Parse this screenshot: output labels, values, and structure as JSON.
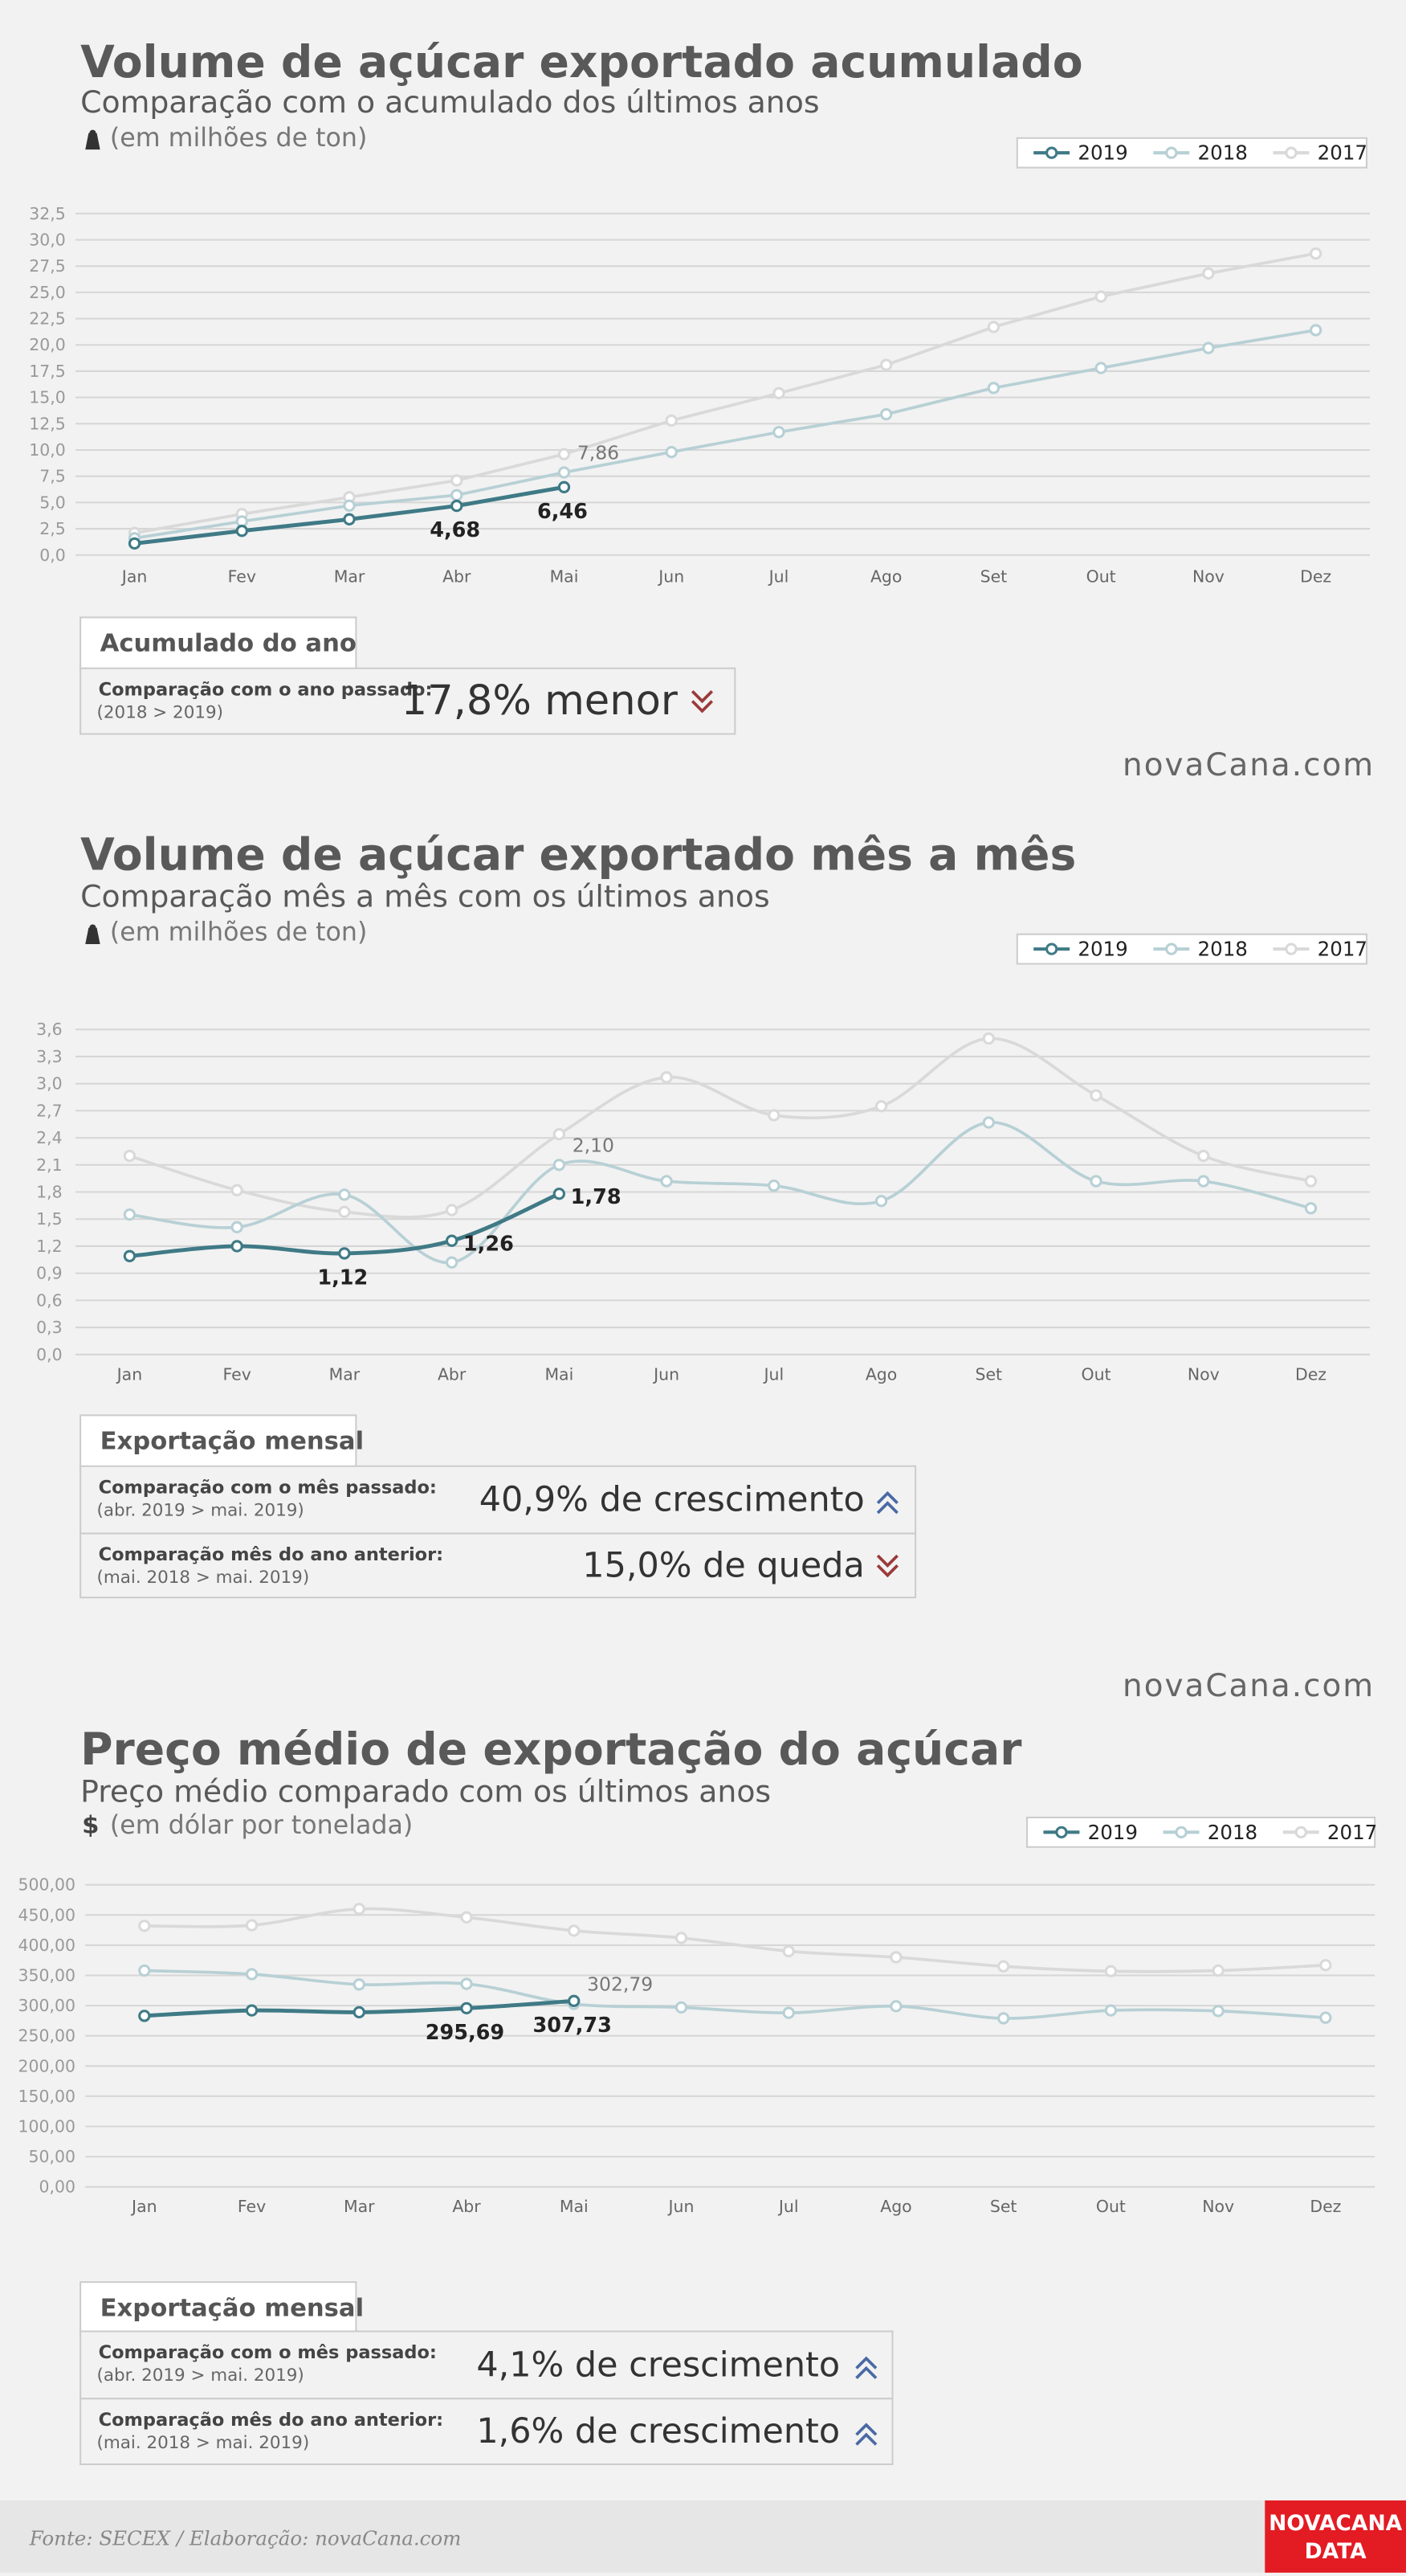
{
  "chart_data": [
    {
      "type": "line",
      "title": "Volume de açúcar exportado acumulado",
      "subtitle": "Comparação com o acumulado dos últimos anos",
      "unit": "(em milhões de ton)",
      "categories": [
        "Jan",
        "Fev",
        "Mar",
        "Abr",
        "Mai",
        "Jun",
        "Jul",
        "Ago",
        "Set",
        "Out",
        "Nov",
        "Dez"
      ],
      "series": [
        {
          "name": "2019",
          "color": "#3f7a86",
          "values": [
            1.1,
            2.3,
            3.4,
            4.68,
            6.46,
            null,
            null,
            null,
            null,
            null,
            null,
            null
          ],
          "value_labels": [
            null,
            null,
            null,
            "4,68",
            "6,46",
            null,
            null,
            null,
            null,
            null,
            null,
            null
          ]
        },
        {
          "name": "2018",
          "color": "#b7d0d5",
          "values": [
            1.6,
            3.2,
            4.7,
            5.7,
            7.86,
            9.8,
            11.7,
            13.4,
            15.9,
            17.8,
            19.7,
            21.4
          ],
          "value_labels": [
            null,
            null,
            null,
            null,
            "7,86",
            null,
            null,
            null,
            null,
            null,
            null,
            null
          ]
        },
        {
          "name": "2017",
          "color": "#d9d9d9",
          "values": [
            2.1,
            3.9,
            5.5,
            7.1,
            9.6,
            12.8,
            15.4,
            18.1,
            21.7,
            24.6,
            26.8,
            28.7
          ]
        }
      ],
      "ylim": [
        0,
        32.5
      ],
      "yticks": [
        {
          "value": 0,
          "label": "0,0"
        },
        {
          "value": 2.5,
          "label": "2,5"
        },
        {
          "value": 5,
          "label": "5,0"
        },
        {
          "value": 7.5,
          "label": "7,5"
        },
        {
          "value": 10,
          "label": "10,0"
        },
        {
          "value": 12.5,
          "label": "12,5"
        },
        {
          "value": 15,
          "label": "15,0"
        },
        {
          "value": 17.5,
          "label": "17,5"
        },
        {
          "value": 20,
          "label": "20,0"
        },
        {
          "value": 22.5,
          "label": "22,5"
        },
        {
          "value": 25,
          "label": "25,0"
        },
        {
          "value": 27.5,
          "label": "27,5"
        },
        {
          "value": 30,
          "label": "30,0"
        },
        {
          "value": 32.5,
          "label": "32,5"
        }
      ],
      "grid": true,
      "smooth": false,
      "legend": "top-right",
      "summary": {
        "heading": "Acumulado do ano",
        "rows": [
          {
            "label": "Comparação com o ano passado:",
            "sublabel": "(2018 > 2019)",
            "value": "17,8% menor",
            "direction": "down"
          }
        ]
      },
      "watermark": "novaCana.com"
    },
    {
      "type": "line",
      "title": "Volume de açúcar exportado mês a mês",
      "subtitle": "Comparação mês a mês com os últimos anos",
      "unit": "(em milhões de ton)",
      "categories": [
        "Jan",
        "Fev",
        "Mar",
        "Abr",
        "Mai",
        "Jun",
        "Jul",
        "Ago",
        "Set",
        "Out",
        "Nov",
        "Dez"
      ],
      "series": [
        {
          "name": "2019",
          "color": "#3f7a86",
          "values": [
            1.09,
            1.2,
            1.12,
            1.26,
            1.78,
            null,
            null,
            null,
            null,
            null,
            null,
            null
          ],
          "value_labels": [
            null,
            null,
            "1,12",
            "1,26",
            "1,78",
            null,
            null,
            null,
            null,
            null,
            null,
            null
          ]
        },
        {
          "name": "2018",
          "color": "#b7d0d5",
          "values": [
            1.55,
            1.41,
            1.77,
            1.02,
            2.1,
            1.92,
            1.87,
            1.7,
            2.57,
            1.92,
            1.92,
            1.62
          ],
          "value_labels": [
            null,
            null,
            null,
            null,
            "2,10",
            null,
            null,
            null,
            null,
            null,
            null,
            null
          ]
        },
        {
          "name": "2017",
          "color": "#d9d9d9",
          "values": [
            2.2,
            1.82,
            1.58,
            1.6,
            2.44,
            3.07,
            2.65,
            2.75,
            3.5,
            2.87,
            2.2,
            1.92
          ]
        }
      ],
      "ylim": [
        0,
        3.6
      ],
      "yticks": [
        {
          "value": 0,
          "label": "0,0"
        },
        {
          "value": 0.3,
          "label": "0,3"
        },
        {
          "value": 0.6,
          "label": "0,6"
        },
        {
          "value": 0.9,
          "label": "0,9"
        },
        {
          "value": 1.2,
          "label": "1,2"
        },
        {
          "value": 1.5,
          "label": "1,5"
        },
        {
          "value": 1.8,
          "label": "1,8"
        },
        {
          "value": 2.1,
          "label": "2,1"
        },
        {
          "value": 2.4,
          "label": "2,4"
        },
        {
          "value": 2.7,
          "label": "2,7"
        },
        {
          "value": 3.0,
          "label": "3,0"
        },
        {
          "value": 3.3,
          "label": "3,3"
        },
        {
          "value": 3.6,
          "label": "3,6"
        }
      ],
      "grid": true,
      "smooth": true,
      "legend": "top-right",
      "summary": {
        "heading": "Exportação mensal",
        "rows": [
          {
            "label": "Comparação com o mês passado:",
            "sublabel": "(abr. 2019 > mai. 2019)",
            "value": "40,9% de crescimento",
            "direction": "up"
          },
          {
            "label": "Comparação mês do ano anterior:",
            "sublabel": "(mai. 2018 > mai. 2019)",
            "value": "15,0% de queda",
            "direction": "down"
          }
        ]
      },
      "watermark": "novaCana.com"
    },
    {
      "type": "line",
      "title": "Preço médio de exportação do açúcar",
      "subtitle": "Preço médio comparado com os últimos anos",
      "unit": "(em dólar por tonelada)",
      "unit_symbol": "$",
      "categories": [
        "Jan",
        "Fev",
        "Mar",
        "Abr",
        "Mai",
        "Jun",
        "Jul",
        "Ago",
        "Set",
        "Out",
        "Nov",
        "Dez"
      ],
      "series": [
        {
          "name": "2019",
          "color": "#3f7a86",
          "values": [
            283,
            292,
            289,
            295.69,
            307.73,
            null,
            null,
            null,
            null,
            null,
            null,
            null
          ],
          "value_labels": [
            null,
            null,
            null,
            "295,69",
            "307,73",
            null,
            null,
            null,
            null,
            null,
            null,
            null
          ]
        },
        {
          "name": "2018",
          "color": "#b7d0d5",
          "values": [
            358,
            352,
            335,
            336,
            302.79,
            297,
            288,
            299,
            279,
            292,
            291,
            280
          ],
          "value_labels": [
            null,
            null,
            null,
            null,
            "302,79",
            null,
            null,
            null,
            null,
            null,
            null,
            null
          ]
        },
        {
          "name": "2017",
          "color": "#d9d9d9",
          "values": [
            432,
            433,
            460,
            446,
            424,
            412,
            390,
            380,
            365,
            357,
            358,
            367
          ]
        }
      ],
      "ylim": [
        0,
        500
      ],
      "yticks": [
        {
          "value": 0,
          "label": "0,00"
        },
        {
          "value": 50,
          "label": "50,00"
        },
        {
          "value": 100,
          "label": "100,00"
        },
        {
          "value": 150,
          "label": "150,00"
        },
        {
          "value": 200,
          "label": "200,00"
        },
        {
          "value": 250,
          "label": "250,00"
        },
        {
          "value": 300,
          "label": "300,00"
        },
        {
          "value": 350,
          "label": "350,00"
        },
        {
          "value": 400,
          "label": "400,00"
        },
        {
          "value": 450,
          "label": "450,00"
        },
        {
          "value": 500,
          "label": "500,00"
        }
      ],
      "grid": true,
      "smooth": true,
      "legend": "top-right",
      "summary": {
        "heading": "Exportação mensal",
        "rows": [
          {
            "label": "Comparação com o mês passado:",
            "sublabel": "(abr. 2019 > mai. 2019)",
            "value": "4,1% de crescimento",
            "direction": "up"
          },
          {
            "label": "Comparação mês do ano anterior:",
            "sublabel": "(mai. 2018 > mai. 2019)",
            "value": "1,6% de crescimento",
            "direction": "up"
          }
        ]
      }
    }
  ],
  "footer": {
    "source": "Fonte: SECEX  / Elaboração: novaCana.com",
    "brand_top": "NOVACANA",
    "brand_bottom": "DATA"
  }
}
